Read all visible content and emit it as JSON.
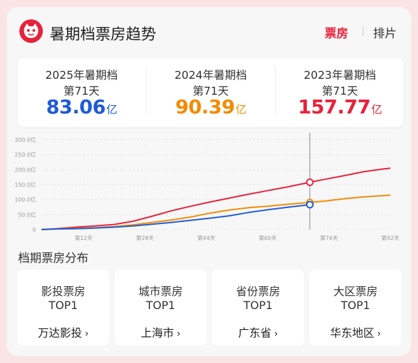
{
  "header": {
    "title": "暑期档票房趋势",
    "tabs": [
      "票房",
      "排片"
    ]
  },
  "stats": [
    {
      "year": "2025年暑期档",
      "day": "第71天",
      "value": "83.06",
      "unit": "亿",
      "color": "#1f5bd6"
    },
    {
      "year": "2024年暑期档",
      "day": "第71天",
      "value": "90.39",
      "unit": "亿",
      "color": "#f28b00"
    },
    {
      "year": "2023年暑期档",
      "day": "第71天",
      "value": "157.77",
      "unit": "亿",
      "color": "#e8223a"
    }
  ],
  "chart_data": {
    "type": "line",
    "x_ticks": [
      "第12天",
      "第28天",
      "第44天",
      "第60天",
      "第76天",
      "第92天"
    ],
    "y_ticks": [
      "300.0亿",
      "250.0亿",
      "200.0亿",
      "150.0亿",
      "100.0亿",
      "50.0亿",
      "0"
    ],
    "ylim": [
      0,
      300
    ],
    "xlim": [
      1,
      92
    ],
    "cursor_day": 71,
    "series": [
      {
        "color": "#e8223a",
        "x": [
          1,
          5,
          10,
          15,
          20,
          25,
          30,
          35,
          40,
          45,
          50,
          55,
          60,
          65,
          71,
          75,
          80,
          85,
          90,
          92
        ],
        "y": [
          0,
          3,
          8,
          12,
          17,
          28,
          45,
          63,
          78,
          92,
          105,
          118,
          130,
          142,
          157.77,
          168,
          180,
          193,
          202,
          205
        ]
      },
      {
        "color": "#f28b00",
        "x": [
          1,
          5,
          10,
          15,
          20,
          25,
          30,
          35,
          40,
          45,
          50,
          55,
          60,
          65,
          71,
          75,
          80,
          85,
          90,
          92
        ],
        "y": [
          0,
          2,
          4,
          6,
          10,
          16,
          24,
          32,
          42,
          55,
          65,
          73,
          78,
          84,
          90.39,
          95,
          103,
          109,
          113,
          115
        ]
      },
      {
        "color": "#1f5bd6",
        "x": [
          1,
          5,
          10,
          15,
          20,
          25,
          30,
          35,
          40,
          45,
          50,
          55,
          60,
          65,
          71
        ],
        "y": [
          0,
          2,
          3,
          5,
          8,
          12,
          18,
          24,
          31,
          38,
          46,
          57,
          66,
          74,
          83.06
        ]
      }
    ]
  },
  "distribution": {
    "title": "档期票房分布",
    "tiles": [
      {
        "label": "影投票房",
        "rank": "TOP1",
        "value": "万达影投"
      },
      {
        "label": "城市票房",
        "rank": "TOP1",
        "value": "上海市"
      },
      {
        "label": "省份票房",
        "rank": "TOP1",
        "value": "广东省"
      },
      {
        "label": "大区票房",
        "rank": "TOP1",
        "value": "华东地区"
      }
    ]
  }
}
